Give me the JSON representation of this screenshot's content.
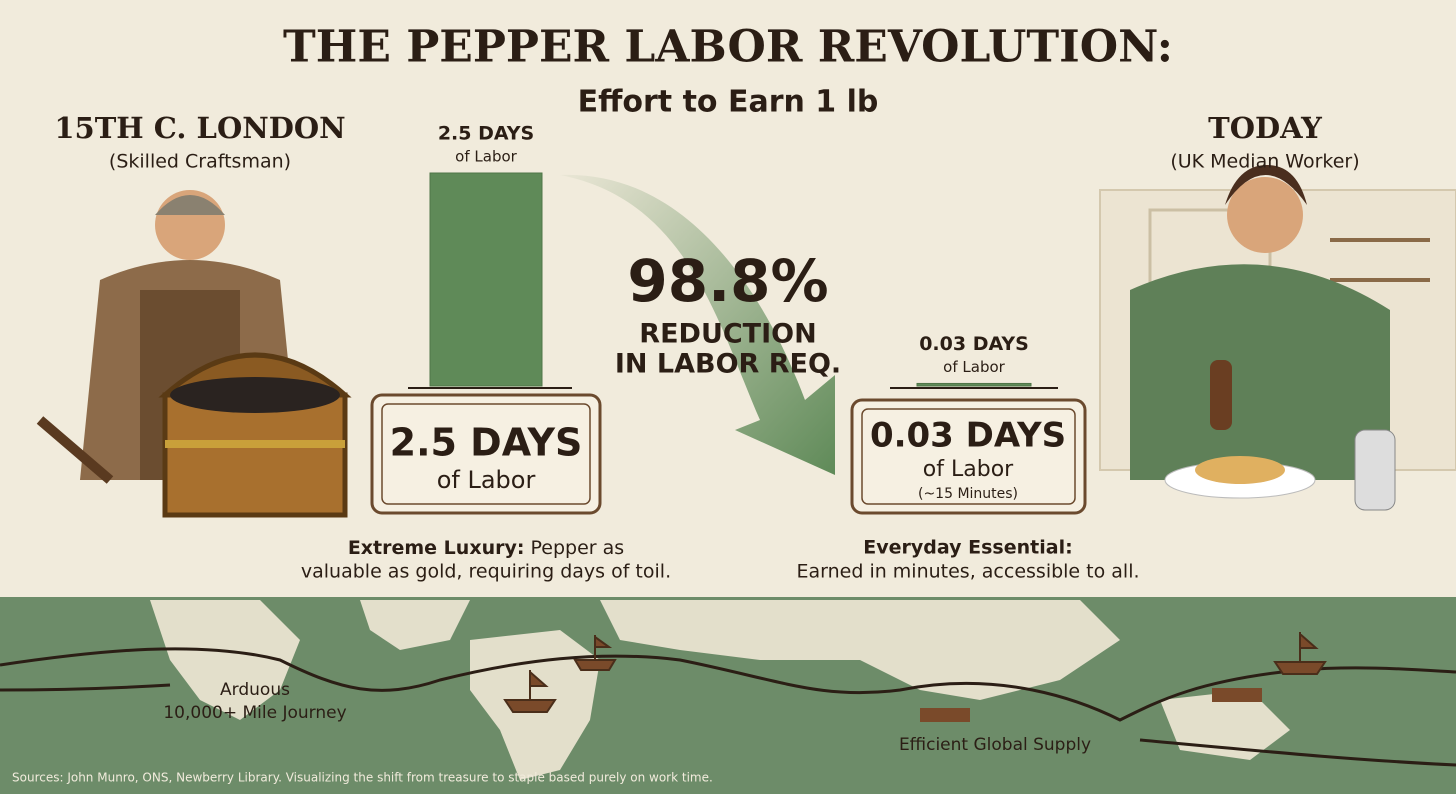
{
  "chart_data": {
    "type": "bar",
    "title": "THE PEPPER LABOR REVOLUTION:",
    "subtitle": "Effort to Earn 1 lb",
    "categories": [
      "15TH C. LONDON",
      "TODAY"
    ],
    "category_notes": [
      "(Skilled Craftsman)",
      "(UK Median Worker)"
    ],
    "values": [
      2.5,
      0.03
    ],
    "value_labels": [
      "2.5 DAYS",
      "0.03 DAYS"
    ],
    "unit_label": "of Labor",
    "color": "#5f8a58",
    "reduction": {
      "value": 98.8,
      "label": "98.8%"
    },
    "reduction_text": [
      "REDUCTION",
      "IN LABOR REQ."
    ],
    "duration_note": "(~15 Minutes)",
    "descriptions": [
      {
        "lead": "Extreme Luxury:",
        "lines": [
          "Pepper as",
          "valuable as gold, requiring days of toil."
        ]
      },
      {
        "lead": "Everyday Essential:",
        "lines": [
          "Earned in minutes, accessible to all."
        ]
      }
    ]
  },
  "map": {
    "labels": [
      "Arduous",
      "10,000+ Mile Journey",
      "Efficient Global Supply"
    ]
  },
  "footer": "Sources: John Munro, ONS, Newberry Library. Visualizing the shift from treasure to staple based purely on work time."
}
